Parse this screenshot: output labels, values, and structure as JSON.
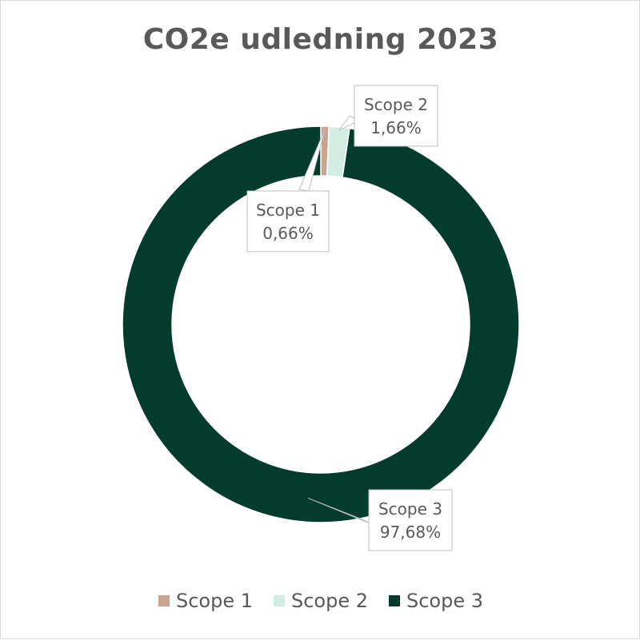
{
  "chart_data": {
    "type": "pie",
    "variant": "donut",
    "title": "CO2e udledning 2023",
    "categories": [
      "Scope 1",
      "Scope 2",
      "Scope 3"
    ],
    "values": [
      0.66,
      1.66,
      97.68
    ],
    "data_labels": [
      {
        "name": "Scope 1",
        "value": "0,66%"
      },
      {
        "name": "Scope 2",
        "value": "1,66%"
      },
      {
        "name": "Scope 3",
        "value": "97,68%"
      }
    ],
    "colors": [
      "#c9a48e",
      "#d3ede3",
      "#033c2d"
    ],
    "legend_position": "bottom"
  }
}
